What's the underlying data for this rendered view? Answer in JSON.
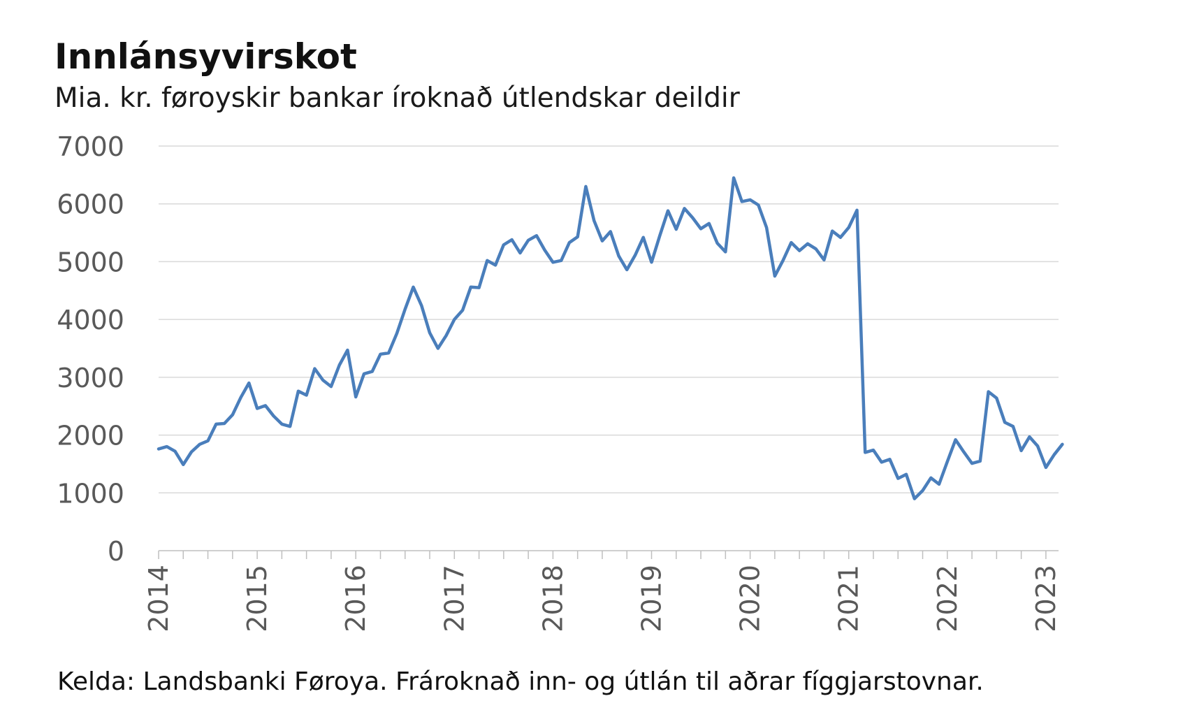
{
  "title": "Innlánsyvirskot",
  "subtitle": "Mia. kr. føroyskir bankar íroknað útlendskar deildir",
  "source": "Kelda: Landsbanki Føroya. Frároknað inn- og útlán til aðrar fíggjarstovnar.",
  "colors": {
    "line": "#4a7ebb",
    "grid": "#d9d9d9",
    "axis": "#bfbfbf",
    "tick_text": "#595959"
  },
  "chart_data": {
    "type": "line",
    "title": "Innlánsyvirskot",
    "subtitle": "Mia. kr. føroyskir bankar íroknað útlendskar deildir",
    "ylim": [
      0,
      7000
    ],
    "yticks": [
      0,
      1000,
      2000,
      3000,
      4000,
      5000,
      6000,
      7000
    ],
    "xticks": [
      "2014",
      "2015",
      "2016",
      "2017",
      "2018",
      "2019",
      "2020",
      "2021",
      "2022",
      "2023"
    ],
    "x_start": "2014-01",
    "frequency": "monthly",
    "grid": true,
    "series": [
      {
        "values": [
          1760,
          1800,
          1720,
          1490,
          1710,
          1840,
          1900,
          2190,
          2200,
          2350,
          2650,
          2900,
          2460,
          2510,
          2330,
          2190,
          2150,
          2760,
          2690,
          3150,
          2950,
          2840,
          3210,
          3470,
          2660,
          3060,
          3100,
          3400,
          3420,
          3760,
          4180,
          4560,
          4240,
          3770,
          3500,
          3720,
          4000,
          4160,
          4560,
          4550,
          5020,
          4940,
          5290,
          5380,
          5150,
          5370,
          5450,
          5200,
          4990,
          5020,
          5330,
          5430,
          6300,
          5710,
          5360,
          5520,
          5100,
          4860,
          5110,
          5420,
          4990,
          5450,
          5880,
          5560,
          5920,
          5760,
          5570,
          5660,
          5320,
          5170,
          6450,
          6040,
          6070,
          5980,
          5590,
          4750,
          5020,
          5330,
          5190,
          5310,
          5220,
          5030,
          5530,
          5420,
          5590,
          5890,
          1700,
          1740,
          1530,
          1580,
          1250,
          1320,
          900,
          1040,
          1260,
          1150,
          1540,
          1920,
          1710,
          1510,
          1550,
          2750,
          2640,
          2220,
          2150,
          1730,
          1970,
          1810,
          1440,
          1660,
          1840
        ]
      }
    ]
  }
}
